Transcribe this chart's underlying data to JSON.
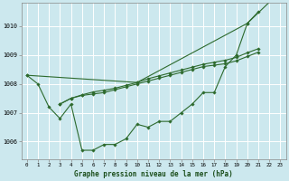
{
  "background_color": "#cce8ee",
  "grid_color": "#ffffff",
  "line_color": "#2d6a2d",
  "marker_color": "#2d6a2d",
  "title": "Graphe pression niveau de la mer (hPa)",
  "xlim": [
    -0.5,
    23.5
  ],
  "ylim": [
    1005.4,
    1010.8
  ],
  "yticks": [
    1006,
    1007,
    1008,
    1009,
    1010
  ],
  "xticks": [
    0,
    1,
    2,
    3,
    4,
    5,
    6,
    7,
    8,
    9,
    10,
    11,
    12,
    13,
    14,
    15,
    16,
    17,
    18,
    19,
    20,
    21,
    22,
    23
  ],
  "series_main": {
    "x": [
      0,
      1,
      2,
      3,
      4,
      5,
      6,
      7,
      8,
      9,
      10,
      11,
      12,
      13,
      14,
      15,
      16,
      17,
      18,
      19,
      20,
      21
    ],
    "y": [
      1008.3,
      1008.0,
      1007.2,
      1006.8,
      1007.3,
      1005.7,
      1005.7,
      1005.9,
      1005.9,
      1006.1,
      1006.6,
      1006.5,
      1006.7,
      1006.7,
      1007.0,
      1007.3,
      1007.7,
      1007.7,
      1008.6,
      1009.0,
      1010.1,
      1010.5
    ]
  },
  "series_trend1": {
    "x": [
      3,
      4,
      5,
      6,
      7,
      8,
      9,
      10,
      11,
      12,
      13,
      14,
      15,
      16,
      17,
      18,
      19,
      20,
      21
    ],
    "y": [
      1007.3,
      1007.5,
      1007.6,
      1007.65,
      1007.7,
      1007.8,
      1007.9,
      1008.0,
      1008.1,
      1008.2,
      1008.3,
      1008.4,
      1008.5,
      1008.6,
      1008.65,
      1008.7,
      1008.8,
      1008.95,
      1009.1
    ]
  },
  "series_trend2": {
    "x": [
      3,
      4,
      5,
      6,
      7,
      8,
      9,
      10,
      11,
      12,
      13,
      14,
      15,
      16,
      17,
      18,
      19,
      20,
      21
    ],
    "y": [
      1007.3,
      1007.5,
      1007.62,
      1007.72,
      1007.78,
      1007.85,
      1007.95,
      1008.05,
      1008.18,
      1008.28,
      1008.38,
      1008.48,
      1008.58,
      1008.68,
      1008.75,
      1008.82,
      1008.92,
      1009.08,
      1009.22
    ]
  },
  "series_diagonal": {
    "x": [
      0,
      10,
      20,
      23
    ],
    "y": [
      1008.3,
      1008.05,
      1010.1,
      1011.2
    ]
  }
}
